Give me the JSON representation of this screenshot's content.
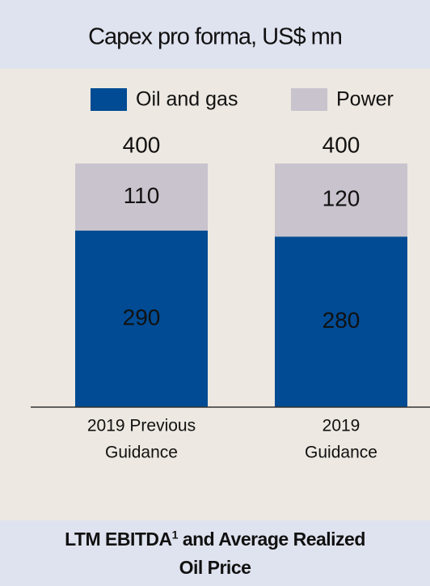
{
  "chart_data": {
    "type": "stacked_bar",
    "title": "Capex pro forma, US$ mn",
    "categories": [
      [
        "2019 Previous",
        "Guidance"
      ],
      [
        "2019",
        "Guidance"
      ]
    ],
    "series": [
      {
        "name": "Oil and gas",
        "color": "#004b93",
        "values": [
          290,
          280
        ]
      },
      {
        "name": "Power",
        "color": "#c9c3cd",
        "values": [
          110,
          120
        ]
      }
    ],
    "totals": [
      400,
      400
    ],
    "ylim": [
      0,
      400
    ],
    "footer": {
      "line1": [
        "LTM EBITDA",
        "1",
        " and Average Realized"
      ],
      "line2": "Oil Price"
    }
  }
}
